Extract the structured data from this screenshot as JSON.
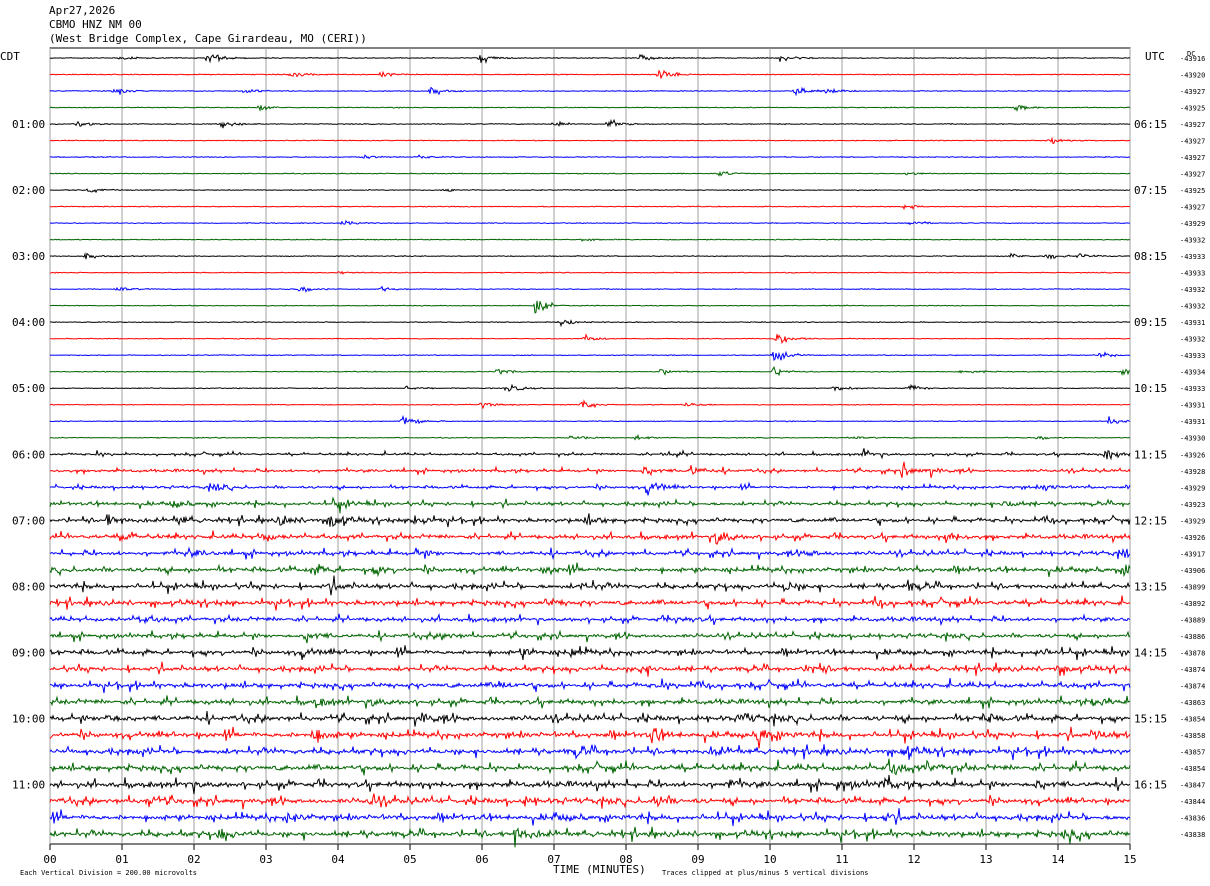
{
  "header": {
    "date": "Apr27,2026",
    "station": "CBMO HNZ NM 00",
    "location": "(West Bridge Complex, Cape Girardeau, MO (CERI))"
  },
  "left_axis_label": "CDT",
  "right_axis_label": "UTC",
  "dc_label": "DC",
  "footer": {
    "scale_note": "Each Vertical Division =  200.00 microvolts",
    "xlabel": "TIME (MINUTES)",
    "clip_note": "Traces clipped at plus/minus 5 vertical divisions"
  },
  "colors": {
    "trace_cycle": [
      "#000000",
      "#ff0000",
      "#0000ff",
      "#006400"
    ],
    "grid": "#a0a0a0"
  },
  "chart_data": {
    "type": "line",
    "title": "CBMO HNZ NM 00",
    "xlabel": "TIME (MINUTES)",
    "xlim": [
      0,
      15
    ],
    "x_ticks": [
      "00",
      "01",
      "02",
      "03",
      "04",
      "05",
      "06",
      "07",
      "08",
      "09",
      "10",
      "11",
      "12",
      "13",
      "14",
      "15"
    ],
    "left_time_labels": [
      {
        "row": 4,
        "label": "01:00"
      },
      {
        "row": 8,
        "label": "02:00"
      },
      {
        "row": 12,
        "label": "03:00"
      },
      {
        "row": 16,
        "label": "04:00"
      },
      {
        "row": 20,
        "label": "05:00"
      },
      {
        "row": 24,
        "label": "06:00"
      },
      {
        "row": 28,
        "label": "07:00"
      },
      {
        "row": 32,
        "label": "08:00"
      },
      {
        "row": 36,
        "label": "09:00"
      },
      {
        "row": 40,
        "label": "10:00"
      },
      {
        "row": 44,
        "label": "11:00"
      }
    ],
    "right_time_labels": [
      {
        "row": 4,
        "label": "06:15"
      },
      {
        "row": 8,
        "label": "07:15"
      },
      {
        "row": 12,
        "label": "08:15"
      },
      {
        "row": 16,
        "label": "09:15"
      },
      {
        "row": 20,
        "label": "10:15"
      },
      {
        "row": 24,
        "label": "11:15"
      },
      {
        "row": 28,
        "label": "12:15"
      },
      {
        "row": 32,
        "label": "13:15"
      },
      {
        "row": 36,
        "label": "14:15"
      },
      {
        "row": 40,
        "label": "15:15"
      },
      {
        "row": 44,
        "label": "16:15"
      }
    ],
    "dc_offsets": [
      "-43916",
      "-43920",
      "-43927",
      "-43925",
      "-43927",
      "-43927",
      "-43927",
      "-43927",
      "-43925",
      "-43927",
      "-43929",
      "-43932",
      "-43933",
      "-43933",
      "-43932",
      "-43932",
      "-43931",
      "-43932",
      "-43933",
      "-43934",
      "-43933",
      "-43931",
      "-43931",
      "-43930",
      "-43926",
      "-43928",
      "-43929",
      "-43923",
      "-43929",
      "-43926",
      "-43917",
      "-43906",
      "-43899",
      "-43892",
      "-43889",
      "-43886",
      "-43878",
      "-43874",
      "-43874",
      "-43863",
      "-43854",
      "-43858",
      "-43857",
      "-43854",
      "-43847",
      "-43844",
      "-43836",
      "-43838"
    ],
    "rows": 48,
    "row_noise_amplitude": [
      1,
      1,
      1,
      1,
      1,
      1,
      1,
      1,
      1,
      1,
      1,
      1,
      1,
      1,
      1,
      1,
      1,
      1,
      1,
      1,
      1,
      1,
      1,
      1,
      1.5,
      2,
      2,
      2.5,
      3,
      3,
      3,
      3.5,
      3.5,
      3.5,
      3,
      3,
      3.5,
      3.5,
      3.5,
      3.5,
      4,
      4,
      4,
      4,
      4,
      4,
      4,
      4
    ],
    "events": [
      {
        "row": 0,
        "minute": 0.97,
        "amp": 3
      },
      {
        "row": 0,
        "minute": 2.2,
        "amp": 10
      },
      {
        "row": 0,
        "minute": 5.98,
        "amp": 8
      },
      {
        "row": 0,
        "minute": 8.2,
        "amp": 5
      },
      {
        "row": 0,
        "minute": 10.15,
        "amp": 8
      },
      {
        "row": 1,
        "minute": 3.35,
        "amp": 5
      },
      {
        "row": 1,
        "minute": 4.6,
        "amp": 4
      },
      {
        "row": 1,
        "minute": 8.45,
        "amp": 9
      },
      {
        "row": 2,
        "minute": 0.9,
        "amp": 6
      },
      {
        "row": 2,
        "minute": 2.7,
        "amp": 4
      },
      {
        "row": 2,
        "minute": 5.3,
        "amp": 6
      },
      {
        "row": 2,
        "minute": 10.35,
        "amp": 8
      },
      {
        "row": 2,
        "minute": 10.8,
        "amp": 5
      },
      {
        "row": 3,
        "minute": 2.9,
        "amp": 4
      },
      {
        "row": 3,
        "minute": 13.4,
        "amp": 5
      },
      {
        "row": 4,
        "minute": 0.4,
        "amp": 5
      },
      {
        "row": 4,
        "minute": 2.4,
        "amp": 6
      },
      {
        "row": 4,
        "minute": 7.0,
        "amp": 4
      },
      {
        "row": 4,
        "minute": 7.75,
        "amp": 7
      },
      {
        "row": 5,
        "minute": 13.9,
        "amp": 6
      },
      {
        "row": 6,
        "minute": 4.3,
        "amp": 4
      },
      {
        "row": 6,
        "minute": 5.1,
        "amp": 3
      },
      {
        "row": 7,
        "minute": 9.3,
        "amp": 4
      },
      {
        "row": 7,
        "minute": 11.9,
        "amp": 3
      },
      {
        "row": 8,
        "minute": 0.55,
        "amp": 4
      },
      {
        "row": 8,
        "minute": 5.5,
        "amp": 3
      },
      {
        "row": 9,
        "minute": 11.85,
        "amp": 4
      },
      {
        "row": 10,
        "minute": 4.05,
        "amp": 4
      },
      {
        "row": 10,
        "minute": 11.95,
        "amp": 5
      },
      {
        "row": 11,
        "minute": 7.4,
        "amp": 3
      },
      {
        "row": 12,
        "minute": 0.5,
        "amp": 4
      },
      {
        "row": 12,
        "minute": 13.35,
        "amp": 4
      },
      {
        "row": 12,
        "minute": 13.85,
        "amp": 5
      },
      {
        "row": 12,
        "minute": 14.3,
        "amp": 4
      },
      {
        "row": 13,
        "minute": 4.0,
        "amp": 2
      },
      {
        "row": 14,
        "minute": 0.9,
        "amp": 4
      },
      {
        "row": 14,
        "minute": 3.45,
        "amp": 7
      },
      {
        "row": 14,
        "minute": 4.6,
        "amp": 3
      },
      {
        "row": 15,
        "minute": 6.75,
        "amp": 12
      },
      {
        "row": 16,
        "minute": 7.1,
        "amp": 5
      },
      {
        "row": 17,
        "minute": 7.4,
        "amp": 6
      },
      {
        "row": 17,
        "minute": 10.1,
        "amp": 10
      },
      {
        "row": 18,
        "minute": 10.05,
        "amp": 12
      },
      {
        "row": 18,
        "minute": 14.6,
        "amp": 4
      },
      {
        "row": 19,
        "minute": 6.2,
        "amp": 5
      },
      {
        "row": 19,
        "minute": 8.5,
        "amp": 5
      },
      {
        "row": 19,
        "minute": 10.05,
        "amp": 7
      },
      {
        "row": 19,
        "minute": 12.65,
        "amp": 5
      },
      {
        "row": 19,
        "minute": 14.9,
        "amp": 5
      },
      {
        "row": 20,
        "minute": 4.95,
        "amp": 3
      },
      {
        "row": 20,
        "minute": 6.35,
        "amp": 7
      },
      {
        "row": 20,
        "minute": 10.9,
        "amp": 5
      },
      {
        "row": 20,
        "minute": 11.9,
        "amp": 7
      },
      {
        "row": 21,
        "minute": 6.0,
        "amp": 4
      },
      {
        "row": 21,
        "minute": 7.4,
        "amp": 7
      },
      {
        "row": 21,
        "minute": 8.85,
        "amp": 4
      },
      {
        "row": 22,
        "minute": 4.9,
        "amp": 12
      },
      {
        "row": 22,
        "minute": 14.7,
        "amp": 6
      },
      {
        "row": 23,
        "minute": 7.25,
        "amp": 4
      },
      {
        "row": 23,
        "minute": 8.15,
        "amp": 4
      },
      {
        "row": 23,
        "minute": 11.1,
        "amp": 3
      },
      {
        "row": 23,
        "minute": 13.7,
        "amp": 4
      },
      {
        "row": 24,
        "minute": 0.65,
        "amp": 3
      },
      {
        "row": 24,
        "minute": 8.55,
        "amp": 6
      },
      {
        "row": 24,
        "minute": 11.3,
        "amp": 6
      },
      {
        "row": 24,
        "minute": 14.65,
        "amp": 10
      },
      {
        "row": 25,
        "minute": 8.25,
        "amp": 8
      },
      {
        "row": 25,
        "minute": 8.9,
        "amp": 8
      },
      {
        "row": 25,
        "minute": 11.85,
        "amp": 10
      },
      {
        "row": 25,
        "minute": 12.2,
        "amp": 5
      },
      {
        "row": 26,
        "minute": 2.25,
        "amp": 6
      },
      {
        "row": 26,
        "minute": 8.3,
        "amp": 12
      },
      {
        "row": 26,
        "minute": 13.8,
        "amp": 5
      },
      {
        "row": 27,
        "minute": 1.7,
        "amp": 6
      },
      {
        "row": 27,
        "minute": 3.95,
        "amp": 9
      },
      {
        "row": 27,
        "minute": 13.25,
        "amp": 7
      },
      {
        "row": 28,
        "minute": 0.8,
        "amp": 10
      },
      {
        "row": 28,
        "minute": 1.8,
        "amp": 8
      },
      {
        "row": 28,
        "minute": 3.2,
        "amp": 10
      },
      {
        "row": 28,
        "minute": 3.9,
        "amp": 12
      },
      {
        "row": 28,
        "minute": 5.05,
        "amp": 9
      },
      {
        "row": 28,
        "minute": 7.45,
        "amp": 7
      },
      {
        "row": 28,
        "minute": 13.8,
        "amp": 6
      },
      {
        "row": 29,
        "minute": 1.0,
        "amp": 7
      },
      {
        "row": 29,
        "minute": 2.95,
        "amp": 6
      },
      {
        "row": 29,
        "minute": 9.25,
        "amp": 12
      },
      {
        "row": 29,
        "minute": 12.45,
        "amp": 7
      },
      {
        "row": 30,
        "minute": 1.9,
        "amp": 6
      },
      {
        "row": 30,
        "minute": 5.1,
        "amp": 6
      },
      {
        "row": 30,
        "minute": 10.5,
        "amp": 6
      },
      {
        "row": 30,
        "minute": 14.9,
        "amp": 6
      },
      {
        "row": 31,
        "minute": 3.65,
        "amp": 8
      },
      {
        "row": 31,
        "minute": 4.5,
        "amp": 6
      },
      {
        "row": 31,
        "minute": 6.9,
        "amp": 5
      },
      {
        "row": 31,
        "minute": 14.95,
        "amp": 12
      },
      {
        "row": 32,
        "minute": 3.9,
        "amp": 7
      },
      {
        "row": 32,
        "minute": 7.4,
        "amp": 6
      },
      {
        "row": 32,
        "minute": 10.2,
        "amp": 8
      },
      {
        "row": 32,
        "minute": 11.9,
        "amp": 6
      },
      {
        "row": 33,
        "minute": 6.9,
        "amp": 6
      },
      {
        "row": 33,
        "minute": 11.45,
        "amp": 8
      },
      {
        "row": 34,
        "minute": 1.25,
        "amp": 6
      },
      {
        "row": 34,
        "minute": 8.7,
        "amp": 5
      },
      {
        "row": 35,
        "minute": 3.55,
        "amp": 9
      },
      {
        "row": 35,
        "minute": 5.45,
        "amp": 5
      },
      {
        "row": 36,
        "minute": 3.5,
        "amp": 6
      },
      {
        "row": 36,
        "minute": 6.55,
        "amp": 7
      },
      {
        "row": 36,
        "minute": 7.25,
        "amp": 7
      },
      {
        "row": 36,
        "minute": 13.7,
        "amp": 7
      },
      {
        "row": 37,
        "minute": 8.2,
        "amp": 7
      },
      {
        "row": 37,
        "minute": 10.55,
        "amp": 8
      },
      {
        "row": 37,
        "minute": 14.0,
        "amp": 6
      },
      {
        "row": 38,
        "minute": 6.2,
        "amp": 6
      },
      {
        "row": 38,
        "minute": 8.45,
        "amp": 5
      },
      {
        "row": 38,
        "minute": 9.0,
        "amp": 6
      },
      {
        "row": 39,
        "minute": 3.7,
        "amp": 7
      },
      {
        "row": 39,
        "minute": 4.45,
        "amp": 6
      },
      {
        "row": 39,
        "minute": 14.5,
        "amp": 6
      },
      {
        "row": 40,
        "minute": 0.8,
        "amp": 8
      },
      {
        "row": 40,
        "minute": 5.15,
        "amp": 7
      },
      {
        "row": 40,
        "minute": 9.6,
        "amp": 8
      },
      {
        "row": 40,
        "minute": 12.95,
        "amp": 6
      },
      {
        "row": 41,
        "minute": 3.65,
        "amp": 12
      },
      {
        "row": 41,
        "minute": 8.35,
        "amp": 12
      },
      {
        "row": 41,
        "minute": 9.85,
        "amp": 14
      },
      {
        "row": 41,
        "minute": 14.5,
        "amp": 8
      },
      {
        "row": 42,
        "minute": 7.3,
        "amp": 7
      },
      {
        "row": 42,
        "minute": 11.85,
        "amp": 10
      },
      {
        "row": 42,
        "minute": 9.2,
        "amp": 6
      },
      {
        "row": 43,
        "minute": 11.65,
        "amp": 12
      },
      {
        "row": 43,
        "minute": 12.2,
        "amp": 6
      },
      {
        "row": 44,
        "minute": 1.9,
        "amp": 6
      },
      {
        "row": 44,
        "minute": 9.4,
        "amp": 7
      },
      {
        "row": 44,
        "minute": 10.95,
        "amp": 8
      },
      {
        "row": 44,
        "minute": 11.55,
        "amp": 8
      },
      {
        "row": 44,
        "minute": 13.7,
        "amp": 7
      },
      {
        "row": 45,
        "minute": 1.35,
        "amp": 8
      },
      {
        "row": 45,
        "minute": 4.45,
        "amp": 8
      },
      {
        "row": 45,
        "minute": 8.4,
        "amp": 9
      },
      {
        "row": 45,
        "minute": 6.6,
        "amp": 6
      },
      {
        "row": 46,
        "minute": 3.3,
        "amp": 7
      },
      {
        "row": 46,
        "minute": 7.0,
        "amp": 6
      },
      {
        "row": 46,
        "minute": 11.6,
        "amp": 6
      },
      {
        "row": 47,
        "minute": 2.35,
        "amp": 8
      },
      {
        "row": 47,
        "minute": 6.45,
        "amp": 14
      },
      {
        "row": 47,
        "minute": 14.1,
        "amp": 8
      }
    ]
  }
}
